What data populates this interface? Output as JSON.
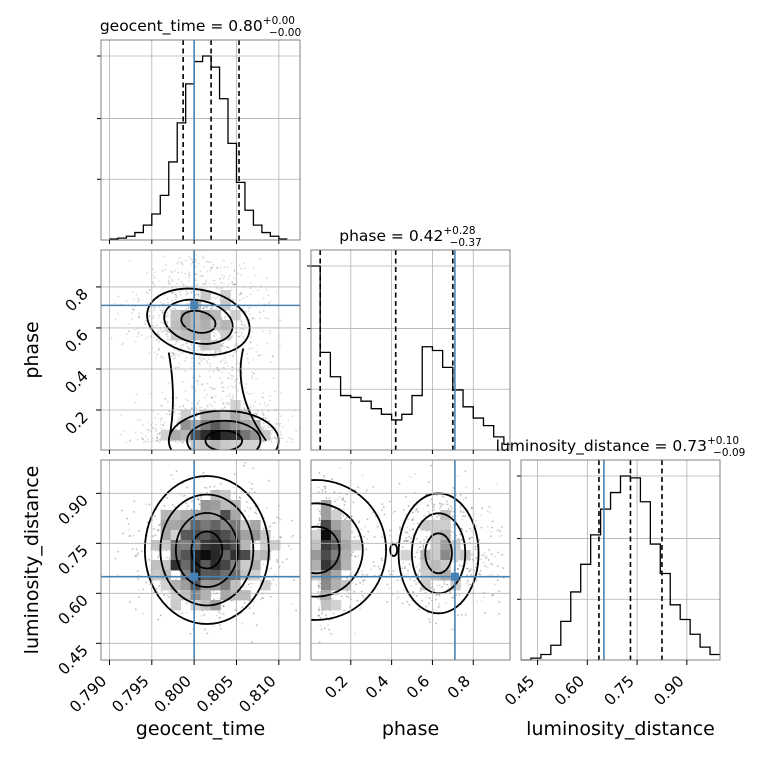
{
  "chart_data": {
    "type": "corner",
    "parameters": [
      "geocent_time",
      "phase",
      "luminosity_distance"
    ],
    "axis_labels": [
      "geocent_time",
      "phase",
      "luminosity_distance"
    ],
    "injection": {
      "geocent_time": 0.8,
      "phase": 0.71,
      "luminosity_distance": 0.65
    },
    "marker_color": "#4682b4",
    "grid": true,
    "diagonal": [
      {
        "parameter": "geocent_time",
        "title_prefix": "geocent_time = 0.80",
        "title_sup": "+0.00",
        "title_sub": "−0.00",
        "range": [
          0.789,
          0.8125
        ],
        "quantiles": [
          0.7987,
          0.802,
          0.8053
        ],
        "hist_edges": [
          0.79,
          0.791,
          0.792,
          0.793,
          0.794,
          0.795,
          0.796,
          0.797,
          0.798,
          0.799,
          0.8,
          0.801,
          0.802,
          0.803,
          0.804,
          0.805,
          0.806,
          0.807,
          0.808,
          0.809,
          0.81,
          0.811
        ],
        "hist_counts": [
          0.005,
          0.01,
          0.02,
          0.04,
          0.08,
          0.14,
          0.24,
          0.42,
          0.63,
          0.84,
          0.96,
          0.99,
          0.93,
          0.76,
          0.52,
          0.31,
          0.16,
          0.08,
          0.04,
          0.02,
          0.005
        ],
        "xticks": [
          0.79,
          0.795,
          0.8,
          0.805,
          0.81
        ],
        "xticklabels": [
          "0.790",
          "0.795",
          "0.800",
          "0.805",
          "0.810"
        ]
      },
      {
        "parameter": "phase",
        "title_prefix": "phase = 0.42",
        "title_sup": "+0.28",
        "title_sub": "−0.37",
        "range": [
          0.005,
          0.98
        ],
        "quantiles": [
          0.05,
          0.42,
          0.7
        ],
        "hist_edges": [
          0.0,
          0.05,
          0.1,
          0.15,
          0.2,
          0.25,
          0.3,
          0.35,
          0.4,
          0.45,
          0.5,
          0.55,
          0.6,
          0.65,
          0.7,
          0.75,
          0.8,
          0.85,
          0.9,
          0.95,
          1.0
        ],
        "hist_counts": [
          0.98,
          0.52,
          0.39,
          0.29,
          0.28,
          0.26,
          0.22,
          0.19,
          0.16,
          0.19,
          0.29,
          0.55,
          0.53,
          0.44,
          0.32,
          0.23,
          0.17,
          0.13,
          0.07,
          0.03
        ],
        "xticks": [
          0.2,
          0.4,
          0.6,
          0.8
        ],
        "xticklabels": [
          "0.2",
          "0.4",
          "0.6",
          "0.8"
        ],
        "yticks": [
          0.2,
          0.4,
          0.6,
          0.8
        ],
        "yticklabels": [
          "0.2",
          "0.4",
          "0.6",
          "0.8"
        ]
      },
      {
        "parameter": "luminosity_distance",
        "title_prefix": "luminosity_distance = 0.73",
        "title_sup": "+0.10",
        "title_sub": "−0.09",
        "range": [
          0.4,
          1.0
        ],
        "quantiles": [
          0.635,
          0.73,
          0.825
        ],
        "hist_edges": [
          0.4,
          0.43,
          0.46,
          0.49,
          0.52,
          0.55,
          0.58,
          0.61,
          0.64,
          0.67,
          0.7,
          0.73,
          0.76,
          0.79,
          0.82,
          0.85,
          0.88,
          0.91,
          0.94,
          0.97,
          1.0
        ],
        "hist_counts": [
          0.0,
          0.01,
          0.03,
          0.08,
          0.21,
          0.37,
          0.52,
          0.68,
          0.82,
          0.91,
          1.0,
          0.99,
          0.86,
          0.63,
          0.47,
          0.3,
          0.22,
          0.14,
          0.07,
          0.03
        ],
        "xticks": [
          0.45,
          0.6,
          0.75,
          0.9
        ],
        "xticklabels": [
          "0.45",
          "0.60",
          "0.75",
          "0.90"
        ],
        "yticks": [
          0.45,
          0.6,
          0.75,
          0.9
        ],
        "yticklabels": [
          "0.45",
          "0.60",
          "0.75",
          "0.90"
        ]
      }
    ]
  }
}
